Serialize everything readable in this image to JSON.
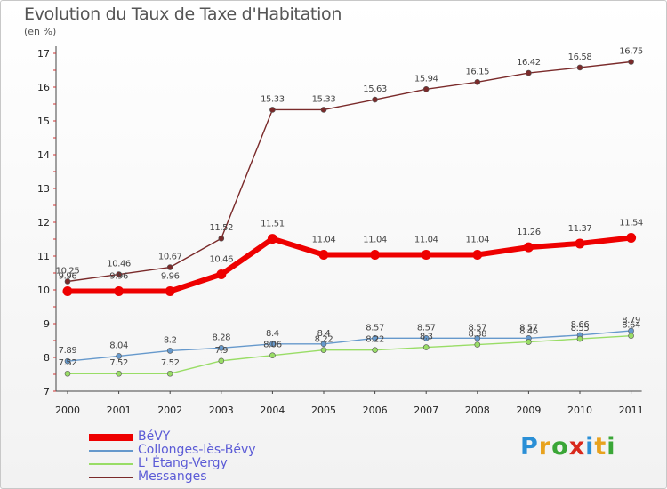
{
  "title": "Evolution du Taux de Taxe d'Habitation",
  "unit_label": "(en %)",
  "logo": {
    "letters": [
      "P",
      "r",
      "o",
      "x",
      "i",
      "t",
      "i"
    ],
    "colors": [
      "#2a8fd6",
      "#e8a21e",
      "#3aa637",
      "#d9291c",
      "#2a8fd6",
      "#e8a21e",
      "#3aa637"
    ]
  },
  "chart_data": {
    "type": "line",
    "title": "Evolution du Taux de Taxe d'Habitation",
    "ylabel": "(en %)",
    "xlabel": "",
    "x": [
      "2000",
      "2001",
      "2002",
      "2003",
      "2004",
      "2005",
      "2006",
      "2007",
      "2008",
      "2009",
      "2010",
      "2011"
    ],
    "ylim": [
      7,
      17
    ],
    "yticks": [
      "7",
      "8",
      "9",
      "10",
      "11",
      "12",
      "13",
      "14",
      "15",
      "16",
      "17"
    ],
    "grid": false,
    "legend_position": "bottom-left",
    "series": [
      {
        "name": "BéVY",
        "color": "#ee0000",
        "values": [
          9.96,
          9.96,
          9.96,
          10.46,
          11.51,
          11.04,
          11.04,
          11.04,
          11.04,
          11.26,
          11.37,
          11.54
        ],
        "labels": [
          "9.96",
          "9.96",
          "9.96",
          "10.46",
          "11.51",
          "11.04",
          "11.04",
          "11.04",
          "11.04",
          "11.26",
          "11.37",
          "11.54"
        ]
      },
      {
        "name": "Collonges-lès-Bévy",
        "color": "#6699cc",
        "values": [
          7.89,
          8.04,
          8.2,
          8.28,
          8.4,
          8.4,
          8.57,
          8.57,
          8.57,
          8.57,
          8.66,
          8.79
        ],
        "labels": [
          "7.89",
          "8.04",
          "8.2",
          "8.28",
          "8.4",
          "8.4",
          "8.57",
          "8.57",
          "8.57",
          "8.57",
          "8.66",
          "8.79"
        ]
      },
      {
        "name": "L' Étang-Vergy",
        "color": "#99dd66",
        "values": [
          7.52,
          7.52,
          7.52,
          7.9,
          8.06,
          8.22,
          8.22,
          8.3,
          8.38,
          8.46,
          8.55,
          8.64
        ],
        "labels": [
          "7.52",
          "7.52",
          "7.52",
          "7.9",
          "8.06",
          "8.22",
          "8.22",
          "8.3",
          "8.38",
          "8.46",
          "8.55",
          "8.64"
        ]
      },
      {
        "name": "Messanges",
        "color": "#7a2a2a",
        "values": [
          10.25,
          10.46,
          10.67,
          11.52,
          15.33,
          15.33,
          15.63,
          15.94,
          16.15,
          16.42,
          16.58,
          16.75
        ],
        "labels": [
          "10.25",
          "10.46",
          "10.67",
          "11.52",
          "15.33",
          "15.33",
          "15.63",
          "15.94",
          "16.15",
          "16.42",
          "16.58",
          "16.75"
        ]
      }
    ]
  }
}
